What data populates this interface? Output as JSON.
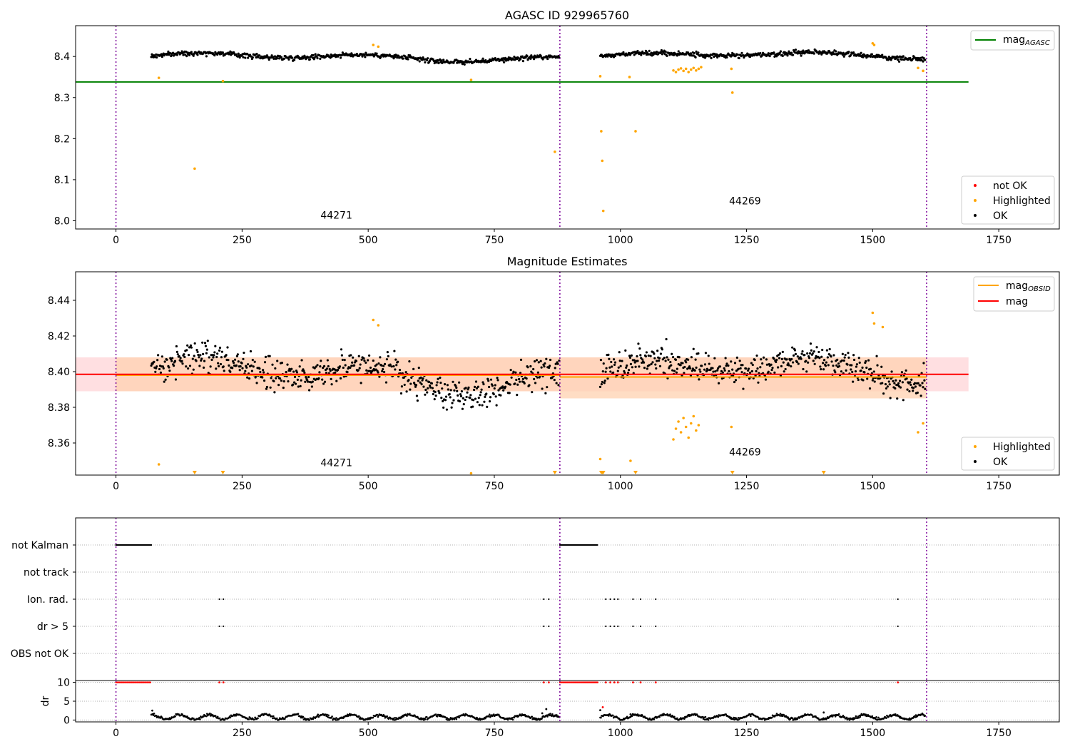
{
  "chart_data": [
    {
      "type": "scatter",
      "title": "AGASC ID 929965760",
      "xlim": [
        -80,
        1870
      ],
      "ylim": [
        7.98,
        8.475
      ],
      "xticks": [
        0,
        250,
        500,
        750,
        1000,
        1250,
        1500,
        1750
      ],
      "yticks": [
        8.0,
        8.1,
        8.2,
        8.3,
        8.4
      ],
      "ytick_labels": [
        "8.0",
        "8.1",
        "8.2",
        "8.3",
        "8.4"
      ],
      "obsid_boundaries": [
        0,
        880,
        1607
      ],
      "obsid_labels": [
        {
          "text": "44271",
          "x": 437,
          "y": 8.005
        },
        {
          "text": "44269",
          "x": 1247,
          "y": 8.04
        }
      ],
      "reference_lines": [
        {
          "name": "mag_AGASC",
          "y": 8.338,
          "x_range": [
            -80,
            1690
          ],
          "color": "#008000"
        }
      ],
      "segments": [
        {
          "x": [
            70,
            880
          ],
          "mean": 8.398,
          "amplitude": 0.012,
          "noise": 0.004
        },
        {
          "x": [
            960,
            1605
          ],
          "mean": 8.402,
          "amplitude": 0.01,
          "noise": 0.004
        }
      ],
      "highlighted_points": [
        [
          85,
          8.348
        ],
        [
          156,
          8.127
        ],
        [
          212,
          8.34
        ],
        [
          510,
          8.428
        ],
        [
          520,
          8.424
        ],
        [
          704,
          8.343
        ],
        [
          870,
          8.168
        ],
        [
          960,
          8.352
        ],
        [
          962,
          8.218
        ],
        [
          964,
          8.146
        ],
        [
          966,
          8.024
        ],
        [
          1018,
          8.35
        ],
        [
          1030,
          8.218
        ],
        [
          1105,
          8.366
        ],
        [
          1110,
          8.362
        ],
        [
          1115,
          8.368
        ],
        [
          1120,
          8.371
        ],
        [
          1125,
          8.365
        ],
        [
          1130,
          8.37
        ],
        [
          1135,
          8.362
        ],
        [
          1140,
          8.368
        ],
        [
          1145,
          8.372
        ],
        [
          1150,
          8.366
        ],
        [
          1155,
          8.37
        ],
        [
          1160,
          8.374
        ],
        [
          1220,
          8.37
        ],
        [
          1222,
          8.312
        ],
        [
          1500,
          8.432
        ],
        [
          1503,
          8.428
        ],
        [
          1590,
          8.372
        ],
        [
          1600,
          8.365
        ]
      ],
      "legend": {
        "position": "lower-right",
        "entries": [
          {
            "label": "not OK",
            "color": "#ff0000"
          },
          {
            "label": "Highlighted",
            "color": "#ffa500"
          },
          {
            "label": "OK",
            "color": "#000000"
          }
        ]
      },
      "legend_top": {
        "position": "upper-right",
        "entries": [
          {
            "label": "mag",
            "sub": "AGASC",
            "color": "#008000"
          }
        ]
      }
    },
    {
      "type": "scatter",
      "title": "Magnitude Estimates",
      "xlim": [
        -80,
        1870
      ],
      "ylim": [
        8.342,
        8.456
      ],
      "xticks": [
        0,
        250,
        500,
        750,
        1000,
        1250,
        1500,
        1750
      ],
      "yticks": [
        8.36,
        8.38,
        8.4,
        8.42,
        8.44
      ],
      "ytick_labels": [
        "8.36",
        "8.38",
        "8.40",
        "8.42",
        "8.44"
      ],
      "obsid_boundaries": [
        0,
        880,
        1607
      ],
      "obsid_labels": [
        {
          "text": "44271",
          "x": 437,
          "y": 8.347
        },
        {
          "text": "44269",
          "x": 1247,
          "y": 8.353
        }
      ],
      "mag": {
        "value": 8.3985,
        "band": [
          8.389,
          8.408
        ],
        "x_range": [
          -80,
          1690
        ],
        "color": "#ff0000",
        "band_color": "#ffdfe1"
      },
      "mag_obsid": [
        {
          "value": 8.398,
          "band": [
            8.389,
            8.408
          ],
          "x_range": [
            0,
            880
          ]
        },
        {
          "value": 8.397,
          "band": [
            8.385,
            8.408
          ],
          "x_range": [
            880,
            1607
          ]
        }
      ],
      "mag_obsid_color": "#ffa500",
      "segments": [
        {
          "x": [
            70,
            880
          ],
          "mean": 8.398,
          "amplitude": 0.012,
          "noise": 0.006
        },
        {
          "x": [
            960,
            1605
          ],
          "mean": 8.4,
          "amplitude": 0.01,
          "noise": 0.006
        }
      ],
      "highlighted_points": [
        [
          85,
          8.348
        ],
        [
          510,
          8.429
        ],
        [
          520,
          8.426
        ],
        [
          704,
          8.343
        ],
        [
          960,
          8.351
        ],
        [
          1020,
          8.35
        ],
        [
          1105,
          8.362
        ],
        [
          1110,
          8.368
        ],
        [
          1115,
          8.372
        ],
        [
          1120,
          8.366
        ],
        [
          1125,
          8.374
        ],
        [
          1130,
          8.369
        ],
        [
          1135,
          8.363
        ],
        [
          1140,
          8.371
        ],
        [
          1145,
          8.375
        ],
        [
          1150,
          8.367
        ],
        [
          1155,
          8.37
        ],
        [
          1220,
          8.369
        ],
        [
          1500,
          8.433
        ],
        [
          1503,
          8.427
        ],
        [
          1520,
          8.425
        ],
        [
          1590,
          8.366
        ],
        [
          1600,
          8.371
        ]
      ],
      "clipped_markers": [
        156,
        212,
        870,
        962,
        964,
        966,
        1030,
        1222,
        1403
      ],
      "legend": {
        "position": "lower-right",
        "entries": [
          {
            "label": "Highlighted",
            "color": "#ffa500"
          },
          {
            "label": "OK",
            "color": "#000000"
          }
        ]
      },
      "legend_top": {
        "position": "upper-right",
        "entries": [
          {
            "label": "mag",
            "sub": "OBSID",
            "color": "#ffa500"
          },
          {
            "label": "mag",
            "sub": "",
            "color": "#ff0000"
          }
        ]
      }
    },
    {
      "type": "scatter",
      "title": "",
      "xlim": [
        -80,
        1870
      ],
      "categories": [
        "not Kalman",
        "not track",
        "Ion. rad.",
        "dr > 5",
        "OBS not OK"
      ],
      "flag_points": {
        "not Kalman": [
          [
            0,
            70
          ],
          [
            880,
            955
          ]
        ],
        "not track": [],
        "Ion. rad.": [
          205,
          213,
          848,
          858,
          971,
          980,
          988,
          995,
          1025,
          1040,
          1070,
          1550
        ],
        "dr > 5": [
          205,
          213,
          848,
          858,
          971,
          980,
          988,
          995,
          1025,
          1040,
          1070,
          1550
        ],
        "OBS not OK": []
      },
      "obsid_boundaries": [
        0,
        880,
        1607
      ]
    },
    {
      "type": "scatter",
      "title": "",
      "ylabel": "dr",
      "xlim": [
        -80,
        1870
      ],
      "ylim": [
        -0.5,
        10.5
      ],
      "xticks": [
        0,
        250,
        500,
        750,
        1000,
        1250,
        1500,
        1750
      ],
      "yticks": [
        0,
        5,
        10
      ],
      "ytick_labels": [
        "0",
        "5",
        "10"
      ],
      "clipped_red": {
        "value": 10,
        "ranges": [
          [
            0,
            70
          ],
          [
            880,
            955
          ]
        ],
        "extra_x": [
          205,
          213,
          848,
          858,
          971,
          980,
          988,
          995,
          1025,
          1040,
          1070,
          1550
        ]
      },
      "segments": [
        {
          "x": [
            70,
            880
          ],
          "mean": 0.8
        },
        {
          "x": [
            960,
            1605
          ],
          "mean": 0.8
        }
      ],
      "spikes": [
        [
          72,
          2.5
        ],
        [
          845,
          1.8
        ],
        [
          853,
          2.9
        ],
        [
          960,
          2.6
        ],
        [
          965,
          3.4
        ],
        [
          1020,
          1.5
        ],
        [
          1403,
          2.0
        ]
      ],
      "obsid_boundaries": [
        0,
        880,
        1607
      ]
    }
  ]
}
